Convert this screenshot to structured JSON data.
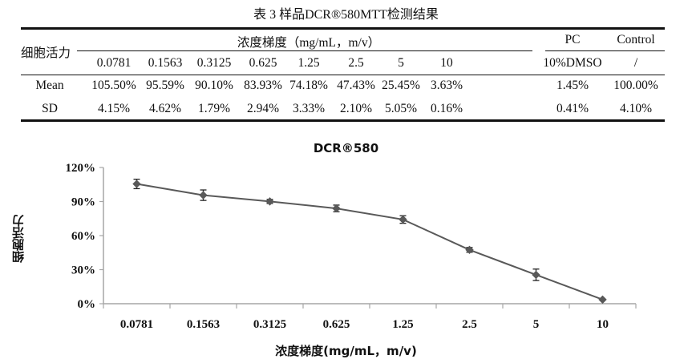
{
  "table": {
    "caption": "表 3   样品DCR®580MTT检测结果",
    "row_header": "细胞活力",
    "group_header": "浓度梯度（mg/mL，m/v）",
    "pc_header": "PC",
    "control_header": "Control",
    "sub_headers": [
      "0.0781",
      "0.1563",
      "0.3125",
      "0.625",
      "1.25",
      "2.5",
      "5",
      "10",
      "10%DMSO",
      "/"
    ],
    "rows": [
      {
        "label": "Mean",
        "values": [
          "105.50%",
          "95.59%",
          "90.10%",
          "83.93%",
          "74.18%",
          "47.43%",
          "25.45%",
          "3.63%",
          "1.45%",
          "100.00%"
        ]
      },
      {
        "label": "SD",
        "values": [
          "4.15%",
          "4.62%",
          "1.79%",
          "2.94%",
          "3.33%",
          "2.10%",
          "5.05%",
          "0.16%",
          "0.41%",
          "4.10%"
        ]
      }
    ]
  },
  "chart_data": {
    "type": "line",
    "title": "DCR®580",
    "xlabel": "浓度梯度(mg/mL，m/v)",
    "ylabel": "细胞活力",
    "categories": [
      "0.0781",
      "0.1563",
      "0.3125",
      "0.625",
      "1.25",
      "2.5",
      "5",
      "10"
    ],
    "series": [
      {
        "name": "DCR®580",
        "values": [
          105.5,
          95.59,
          90.1,
          83.93,
          74.18,
          47.43,
          25.45,
          3.63
        ],
        "errors": [
          4.15,
          4.62,
          1.79,
          2.94,
          3.33,
          2.1,
          5.05,
          0.16
        ],
        "color": "#595959",
        "marker": "diamond"
      }
    ],
    "ylim": [
      0,
      120
    ],
    "yticks": [
      0,
      30,
      60,
      90,
      120
    ],
    "ytick_labels": [
      "0%",
      "30%",
      "60%",
      "90%",
      "120%"
    ],
    "grid": false,
    "legend": "none",
    "axis_color": "#a6a6a6"
  }
}
